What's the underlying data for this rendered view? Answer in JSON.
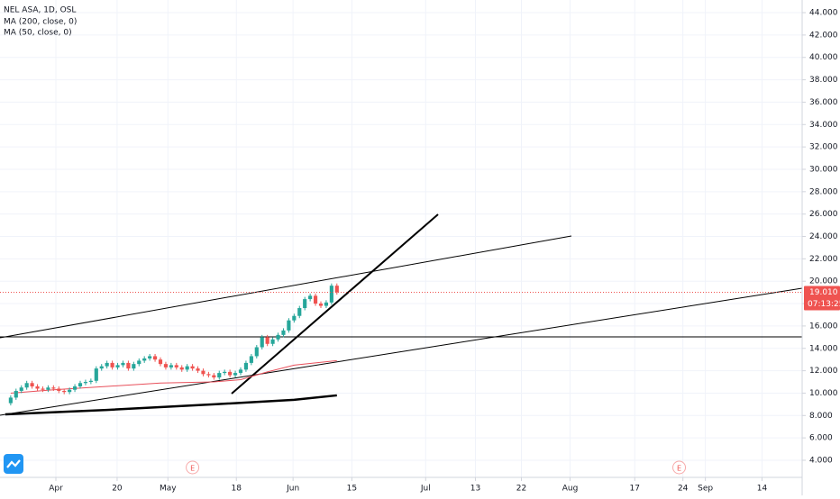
{
  "chart_data": {
    "type": "candlestick",
    "title": "NEL ASA, 1D, OSL",
    "x": [
      2,
      3,
      4,
      5,
      6,
      7,
      8,
      9,
      10,
      11,
      12,
      13,
      14,
      15,
      16,
      17,
      18,
      19,
      20,
      21,
      22,
      23,
      24,
      25,
      26,
      27,
      28,
      29,
      30,
      31,
      32,
      33,
      34,
      35,
      36,
      37,
      38,
      39,
      40,
      41,
      42,
      43,
      44,
      45,
      46,
      47,
      48,
      49,
      50,
      51,
      52,
      53,
      54,
      55,
      56,
      57,
      58,
      59,
      60,
      61,
      62,
      63
    ],
    "open": [
      9.1,
      9.6,
      10.2,
      10.5,
      10.9,
      10.6,
      10.4,
      10.3,
      10.5,
      10.4,
      10.2,
      10.1,
      10.3,
      10.6,
      10.9,
      11.0,
      11.1,
      12.2,
      12.4,
      12.7,
      12.3,
      12.5,
      12.7,
      12.2,
      12.6,
      12.9,
      13.1,
      13.3,
      13.0,
      12.6,
      12.3,
      12.5,
      12.3,
      12.1,
      12.4,
      12.2,
      12.0,
      11.7,
      11.6,
      11.4,
      11.8,
      11.9,
      11.6,
      11.8,
      12.1,
      12.7,
      13.3,
      14.1,
      15.0,
      14.4,
      14.8,
      15.2,
      15.6,
      16.5,
      16.9,
      17.6,
      18.4,
      18.7,
      18.0,
      17.8,
      18.1,
      19.6
    ],
    "high": [
      9.8,
      10.4,
      10.7,
      11.1,
      11.1,
      10.8,
      10.6,
      10.7,
      10.7,
      10.6,
      10.4,
      10.5,
      10.8,
      11.1,
      11.2,
      11.3,
      12.4,
      12.6,
      12.9,
      12.9,
      12.7,
      12.9,
      12.9,
      12.8,
      13.1,
      13.3,
      13.5,
      13.5,
      13.2,
      12.8,
      12.7,
      12.7,
      12.5,
      12.6,
      12.6,
      12.4,
      12.2,
      11.9,
      11.8,
      12.0,
      12.1,
      12.1,
      12.0,
      12.3,
      12.9,
      13.5,
      14.3,
      15.2,
      15.2,
      15.0,
      15.4,
      15.8,
      16.7,
      17.1,
      17.8,
      18.6,
      18.9,
      18.9,
      18.2,
      18.3,
      19.8,
      19.8
    ],
    "low": [
      8.9,
      9.4,
      10.0,
      10.3,
      10.4,
      10.2,
      10.1,
      10.1,
      10.2,
      10.0,
      9.9,
      9.9,
      10.1,
      10.4,
      10.7,
      10.8,
      10.9,
      12.0,
      12.2,
      12.1,
      12.1,
      12.3,
      12.0,
      12.0,
      12.4,
      12.7,
      12.9,
      12.8,
      12.4,
      12.1,
      12.1,
      12.1,
      11.9,
      11.9,
      12.0,
      11.8,
      11.5,
      11.4,
      11.2,
      11.2,
      11.6,
      11.4,
      11.4,
      11.6,
      11.9,
      12.5,
      13.1,
      13.9,
      14.2,
      14.2,
      14.6,
      15.0,
      15.4,
      16.3,
      16.7,
      17.4,
      18.2,
      17.8,
      17.6,
      17.6,
      17.9,
      18.8
    ],
    "close": [
      9.6,
      10.2,
      10.5,
      10.9,
      10.6,
      10.4,
      10.3,
      10.5,
      10.4,
      10.2,
      10.1,
      10.3,
      10.6,
      10.9,
      11.0,
      11.1,
      12.2,
      12.4,
      12.7,
      12.3,
      12.5,
      12.7,
      12.2,
      12.6,
      12.9,
      13.1,
      13.3,
      13.0,
      12.6,
      12.3,
      12.5,
      12.3,
      12.1,
      12.4,
      12.2,
      12.0,
      11.7,
      11.6,
      11.4,
      11.8,
      11.9,
      11.6,
      11.8,
      12.1,
      12.7,
      13.3,
      14.1,
      15.0,
      14.4,
      14.8,
      15.2,
      15.6,
      16.5,
      16.9,
      17.6,
      18.4,
      18.7,
      18.0,
      17.8,
      18.1,
      19.6,
      19.0
    ],
    "up_color": "#26a69a",
    "down_color": "#ef5350",
    "series": [
      {
        "name": "MA (200, close, 0)",
        "color": "#000000",
        "x": [
          1,
          20,
          40,
          55,
          63
        ],
        "values": [
          8.1,
          8.5,
          9.0,
          9.4,
          9.8
        ]
      },
      {
        "name": "MA (50, close, 0)",
        "color": "#e8505b",
        "x": [
          2,
          10,
          20,
          30,
          40,
          45,
          50,
          55,
          63
        ],
        "values": [
          10.0,
          10.3,
          10.6,
          10.9,
          11.0,
          11.2,
          11.9,
          12.5,
          12.9
        ]
      }
    ],
    "last_price": {
      "value": 19.01,
      "label": "19.010"
    },
    "countdown": "07:13:25",
    "events": [
      {
        "x": 36,
        "label": "E"
      },
      {
        "x": 127,
        "label": "E"
      }
    ],
    "xlim": [
      0,
      150
    ],
    "xticks": [
      {
        "value": 10.45,
        "label": "Apr"
      },
      {
        "value": 21.9,
        "label": "20"
      },
      {
        "value": 31.4,
        "label": "May"
      },
      {
        "value": 44.2,
        "label": "18"
      },
      {
        "value": 54.8,
        "label": "Jun"
      },
      {
        "value": 65.8,
        "label": "15"
      },
      {
        "value": 79.6,
        "label": "Jul"
      },
      {
        "value": 88.9,
        "label": "13"
      },
      {
        "value": 97.5,
        "label": "22"
      },
      {
        "value": 106.6,
        "label": "Aug"
      },
      {
        "value": 118.7,
        "label": "17"
      },
      {
        "value": 127.7,
        "label": "24"
      },
      {
        "value": 131.9,
        "label": "Sep"
      },
      {
        "value": 142.5,
        "label": "14"
      }
    ],
    "ylim": [
      2.47,
      45.13
    ],
    "yticks": [
      {
        "value": 4,
        "label": "4.000"
      },
      {
        "value": 6,
        "label": "6.000"
      },
      {
        "value": 8,
        "label": "8.000"
      },
      {
        "value": 10,
        "label": "10.000"
      },
      {
        "value": 12,
        "label": "12.000"
      },
      {
        "value": 14,
        "label": "14.000"
      },
      {
        "value": 16,
        "label": "16.000"
      },
      {
        "value": 18,
        "label": "18.000"
      },
      {
        "value": 20,
        "label": "20.000"
      },
      {
        "value": 22,
        "label": "22.000"
      },
      {
        "value": 24,
        "label": "24.000"
      },
      {
        "value": 26,
        "label": "26.000"
      },
      {
        "value": 28,
        "label": "28.000"
      },
      {
        "value": 30,
        "label": "30.000"
      },
      {
        "value": 32,
        "label": "32.000"
      },
      {
        "value": 34,
        "label": "34.000"
      },
      {
        "value": 36,
        "label": "36.000"
      },
      {
        "value": 38,
        "label": "38.000"
      },
      {
        "value": 40,
        "label": "40.000"
      },
      {
        "value": 42,
        "label": "42.000"
      },
      {
        "value": 44,
        "label": "44.000"
      }
    ],
    "grid": true
  }
}
